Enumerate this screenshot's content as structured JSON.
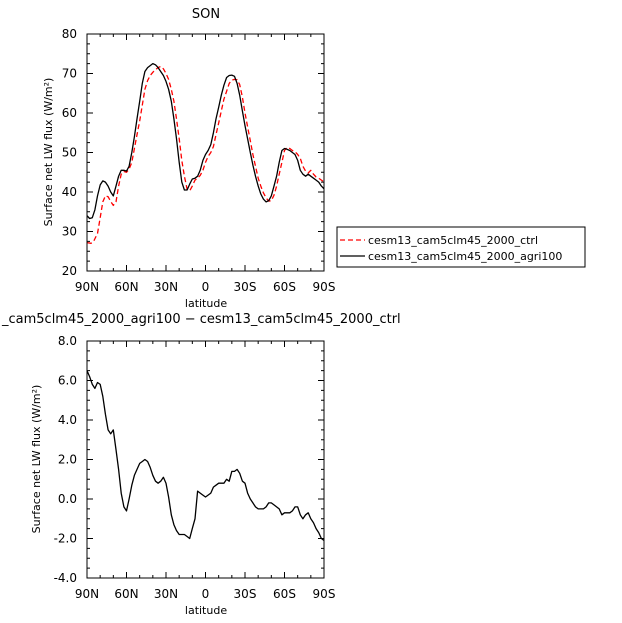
{
  "chart_data": [
    {
      "type": "line",
      "title": "SON",
      "xlabel": "latitude",
      "ylabel": "Surface net LW flux (W/m²)",
      "xlim": [
        90,
        -90
      ],
      "ylim": [
        20,
        80
      ],
      "xticks": [
        90,
        60,
        30,
        0,
        -30,
        -60,
        -90
      ],
      "xtick_labels": [
        "90N",
        "60N",
        "30N",
        "0",
        "30S",
        "60S",
        "90S"
      ],
      "yticks": [
        20,
        30,
        40,
        50,
        60,
        70,
        80
      ],
      "ytick_labels": [
        "20",
        "30",
        "40",
        "50",
        "60",
        "70",
        "80"
      ],
      "legend_position": "right",
      "series": [
        {
          "name": "cesm13_cam5clm45_2000_ctrl",
          "color": "#ff0000",
          "dash": "dashed",
          "x": [
            90,
            87,
            85,
            82,
            80,
            78,
            76,
            74,
            72,
            70,
            68,
            66,
            64,
            62,
            60,
            58,
            56,
            54,
            52,
            50,
            48,
            46,
            44,
            42,
            40,
            38,
            36,
            34,
            32,
            30,
            28,
            26,
            24,
            22,
            20,
            18,
            16,
            14,
            12,
            10,
            8,
            6,
            4,
            2,
            0,
            -2,
            -4,
            -6,
            -8,
            -10,
            -12,
            -14,
            -16,
            -18,
            -20,
            -22,
            -24,
            -26,
            -28,
            -30,
            -32,
            -34,
            -36,
            -38,
            -40,
            -42,
            -44,
            -46,
            -48,
            -50,
            -52,
            -54,
            -56,
            -58,
            -60,
            -62,
            -64,
            -66,
            -68,
            -70,
            -72,
            -74,
            -76,
            -78,
            -80,
            -82,
            -84,
            -86,
            -88,
            -90
          ],
          "y": [
            27.2,
            27.0,
            27.5,
            29.5,
            33.5,
            37.5,
            39.0,
            38.8,
            37.6,
            36.6,
            37.5,
            41.5,
            44.5,
            45.2,
            45.0,
            45.8,
            47.5,
            51.0,
            54.5,
            58.0,
            62.0,
            66.0,
            68.2,
            69.5,
            70.3,
            71.0,
            71.5,
            71.8,
            71.2,
            70.0,
            68.5,
            66.0,
            63.0,
            58.5,
            53.5,
            48.0,
            44.0,
            40.7,
            40.3,
            41.5,
            43.0,
            43.5,
            44.2,
            45.5,
            47.5,
            49.0,
            50.0,
            51.5,
            54.5,
            57.5,
            60.5,
            63.5,
            65.5,
            67.5,
            68.3,
            68.5,
            68.4,
            67.2,
            64.0,
            60.0,
            56.5,
            53.0,
            49.5,
            46.5,
            43.5,
            41.5,
            39.8,
            38.5,
            37.7,
            37.8,
            39.2,
            41.5,
            44.5,
            47.5,
            50.5,
            51.3,
            51.0,
            50.5,
            50.2,
            49.5,
            48.5,
            46.5,
            45.3,
            44.8,
            45.5,
            44.5,
            43.8,
            43.5,
            43.0,
            42.5
          ]
        },
        {
          "name": "cesm13_cam5clm45_2000_agri100",
          "color": "#000000",
          "dash": "solid",
          "x": [
            90,
            88,
            86,
            84,
            82,
            80,
            78,
            76,
            74,
            72,
            70,
            68,
            66,
            64,
            62,
            60,
            58,
            56,
            54,
            52,
            50,
            48,
            46,
            44,
            42,
            40,
            38,
            36,
            34,
            32,
            30,
            28,
            26,
            24,
            22,
            20,
            18,
            16,
            14,
            12,
            10,
            8,
            6,
            4,
            2,
            0,
            -2,
            -4,
            -6,
            -8,
            -10,
            -12,
            -14,
            -16,
            -18,
            -20,
            -22,
            -24,
            -26,
            -28,
            -30,
            -32,
            -34,
            -36,
            -38,
            -40,
            -42,
            -44,
            -46,
            -48,
            -50,
            -52,
            -54,
            -56,
            -58,
            -60,
            -62,
            -64,
            -66,
            -68,
            -70,
            -72,
            -74,
            -76,
            -78,
            -80,
            -82,
            -84,
            -86,
            -88,
            -90
          ],
          "y": [
            34.0,
            33.3,
            33.5,
            35.5,
            39.0,
            41.8,
            42.8,
            42.5,
            41.5,
            40.0,
            39.0,
            41.5,
            44.0,
            45.5,
            45.5,
            45.3,
            46.5,
            50.0,
            54.0,
            58.5,
            63.0,
            67.5,
            70.5,
            71.5,
            72.0,
            72.5,
            72.2,
            71.5,
            70.5,
            69.5,
            68.0,
            66.0,
            63.0,
            58.5,
            53.5,
            47.5,
            42.5,
            40.5,
            40.5,
            42.0,
            43.3,
            43.5,
            44.0,
            45.5,
            48.0,
            49.5,
            50.5,
            52.0,
            55.0,
            58.5,
            61.5,
            64.5,
            67.0,
            69.0,
            69.5,
            69.6,
            69.3,
            67.5,
            64.5,
            60.5,
            56.8,
            53.5,
            50.0,
            46.8,
            44.0,
            41.5,
            39.5,
            38.2,
            37.5,
            37.8,
            39.0,
            41.5,
            44.0,
            47.5,
            50.5,
            51.0,
            50.8,
            50.5,
            50.0,
            49.5,
            48.0,
            45.5,
            44.5,
            44.0,
            44.5,
            44.0,
            43.5,
            43.0,
            42.5,
            41.5,
            40.8
          ]
        }
      ]
    },
    {
      "type": "line",
      "title": "_cam5clm45_2000_agri100 − cesm13_cam5clm45_2000_ctrl",
      "xlabel": "latitude",
      "ylabel": "Surface net LW flux (W/m²)",
      "xlim": [
        90,
        -90
      ],
      "ylim": [
        -4,
        8
      ],
      "xticks": [
        90,
        60,
        30,
        0,
        -30,
        -60,
        -90
      ],
      "xtick_labels": [
        "90N",
        "60N",
        "30N",
        "0",
        "30S",
        "60S",
        "90S"
      ],
      "yticks": [
        -4,
        -2,
        0,
        2,
        4,
        6,
        8
      ],
      "ytick_labels": [
        "-4.0",
        "-2.0",
        "0.0",
        "2.0",
        "4.0",
        "6.0",
        "8.0"
      ],
      "series": [
        {
          "color": "#000000",
          "dash": "solid",
          "x": [
            90,
            88,
            86,
            84,
            82,
            80,
            78,
            76,
            74,
            72,
            70,
            68,
            66,
            64,
            62,
            60,
            58,
            56,
            54,
            52,
            50,
            48,
            46,
            44,
            42,
            40,
            38,
            36,
            34,
            32,
            30,
            28,
            26,
            24,
            22,
            20,
            18,
            16,
            14,
            12,
            10,
            8,
            6,
            4,
            2,
            0,
            -2,
            -4,
            -6,
            -8,
            -10,
            -12,
            -14,
            -16,
            -18,
            -20,
            -22,
            -24,
            -26,
            -28,
            -30,
            -32,
            -34,
            -36,
            -38,
            -40,
            -42,
            -44,
            -46,
            -48,
            -50,
            -52,
            -54,
            -56,
            -58,
            -60,
            -62,
            -64,
            -66,
            -68,
            -70,
            -72,
            -74,
            -76,
            -78,
            -80,
            -82,
            -84,
            -86,
            -88,
            -90
          ],
          "y": [
            6.5,
            6.2,
            5.8,
            5.6,
            5.9,
            5.8,
            5.2,
            4.3,
            3.5,
            3.3,
            3.5,
            2.5,
            1.5,
            0.3,
            -0.4,
            -0.6,
            0.0,
            0.7,
            1.2,
            1.5,
            1.8,
            1.9,
            2.0,
            1.9,
            1.6,
            1.2,
            0.9,
            0.8,
            0.9,
            1.1,
            0.8,
            0.1,
            -0.8,
            -1.3,
            -1.6,
            -1.8,
            -1.8,
            -1.8,
            -1.9,
            -2.0,
            -1.5,
            -1.0,
            0.4,
            0.3,
            0.2,
            0.1,
            0.2,
            0.3,
            0.6,
            0.7,
            0.8,
            0.8,
            0.8,
            1.0,
            0.9,
            1.4,
            1.4,
            1.5,
            1.3,
            0.9,
            0.8,
            0.3,
            0.0,
            -0.2,
            -0.4,
            -0.5,
            -0.5,
            -0.5,
            -0.4,
            -0.2,
            -0.2,
            -0.3,
            -0.4,
            -0.5,
            -0.8,
            -0.7,
            -0.7,
            -0.7,
            -0.6,
            -0.4,
            -0.4,
            -0.8,
            -1.0,
            -0.8,
            -0.7,
            -1.0,
            -1.2,
            -1.5,
            -1.7,
            -2.0,
            -2.1
          ]
        }
      ]
    }
  ]
}
